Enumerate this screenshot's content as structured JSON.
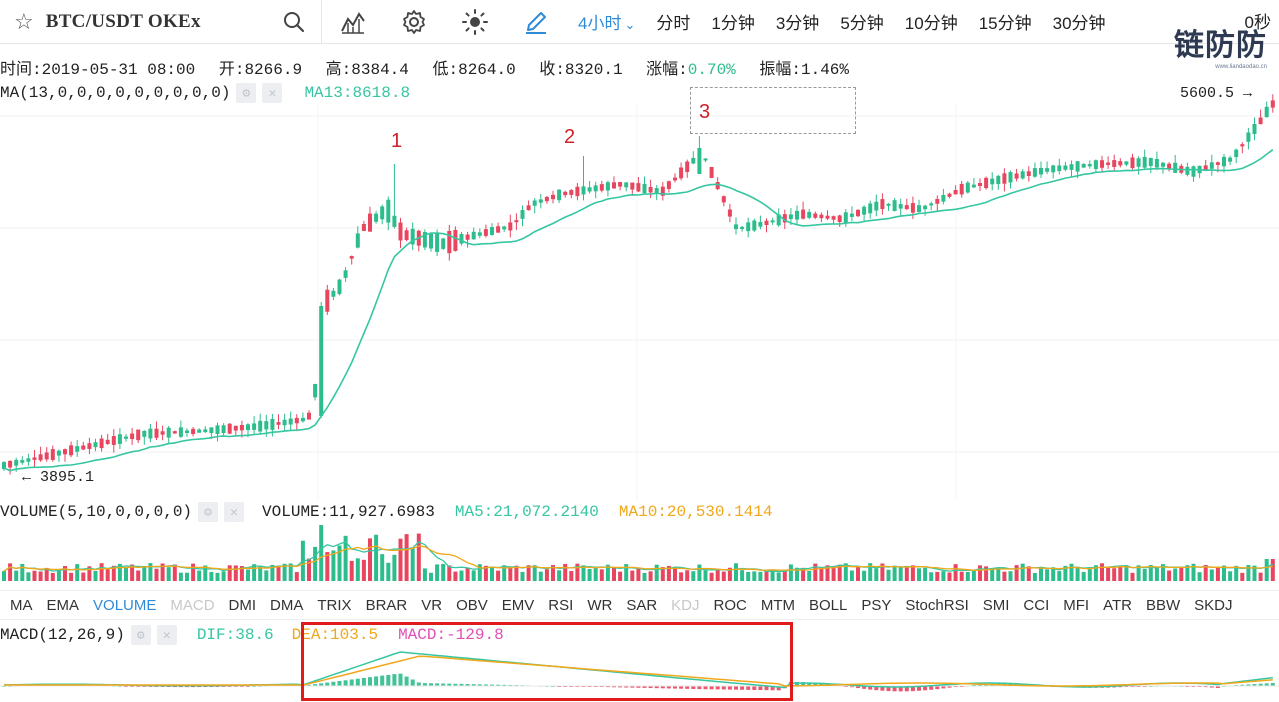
{
  "toolbar": {
    "symbol": "BTC/USDT  OKEx",
    "periods": [
      {
        "label": "4小时",
        "active": true,
        "caret": "⌄"
      },
      {
        "label": "分时"
      },
      {
        "label": "1分钟"
      },
      {
        "label": "3分钟"
      },
      {
        "label": "5分钟"
      },
      {
        "label": "10分钟"
      },
      {
        "label": "15分钟"
      },
      {
        "label": "30分钟"
      }
    ],
    "countdown": "0秒",
    "icons": [
      "star-icon",
      "search-icon",
      "chart-type-icon",
      "settings-icon",
      "theme-icon",
      "draw-icon"
    ]
  },
  "watermark": {
    "text": "链防防",
    "url": "www.liandaodao.cn"
  },
  "ohlc": {
    "time": "时间:2019-05-31 08:00",
    "open": "开:8266.9",
    "high": "高:8384.4",
    "low": "低:8264.0",
    "close": "收:8320.1",
    "change_label": "涨幅:",
    "change_value": "0.70%",
    "amplitude": "振幅:1.46%"
  },
  "ma": {
    "params": "MA(13,0,0,0,0,0,0,0,0,0)",
    "value": "MA13:8618.8"
  },
  "price_labels": {
    "high": "5600.5 →",
    "low": "← 3895.1"
  },
  "annotations": [
    "1",
    "2",
    "3"
  ],
  "volume": {
    "params": "VOLUME(5,10,0,0,0,0)",
    "value": "VOLUME:11,927.6983",
    "ma5": "MA5:21,072.2140",
    "ma10": "MA10:20,530.1414"
  },
  "indicator_tabs": [
    "MA",
    "EMA",
    "VOLUME",
    "MACD",
    "DMI",
    "DMA",
    "TRIX",
    "BRAR",
    "VR",
    "OBV",
    "EMV",
    "RSI",
    "WR",
    "SAR",
    "KDJ",
    "ROC",
    "MTM",
    "BOLL",
    "PSY",
    "StochRSI",
    "SMI",
    "CCI",
    "MFI",
    "ATR",
    "BBW",
    "SKDJ"
  ],
  "active_tab": "VOLUME",
  "disabled_tabs": [
    "MACD",
    "KDJ"
  ],
  "macd": {
    "params": "MACD(12,26,9)",
    "dif": "DIF:38.6",
    "dea": "DEA:103.5",
    "macd": "MACD:-129.8"
  },
  "colors": {
    "up": "#2dbd8c",
    "down": "#e8455f",
    "ma": "#36c6a2",
    "ma10": "#f0a71a",
    "macd": "#e04fb6",
    "accent": "#2f8bd8",
    "highlight": "#e01b1b"
  }
}
